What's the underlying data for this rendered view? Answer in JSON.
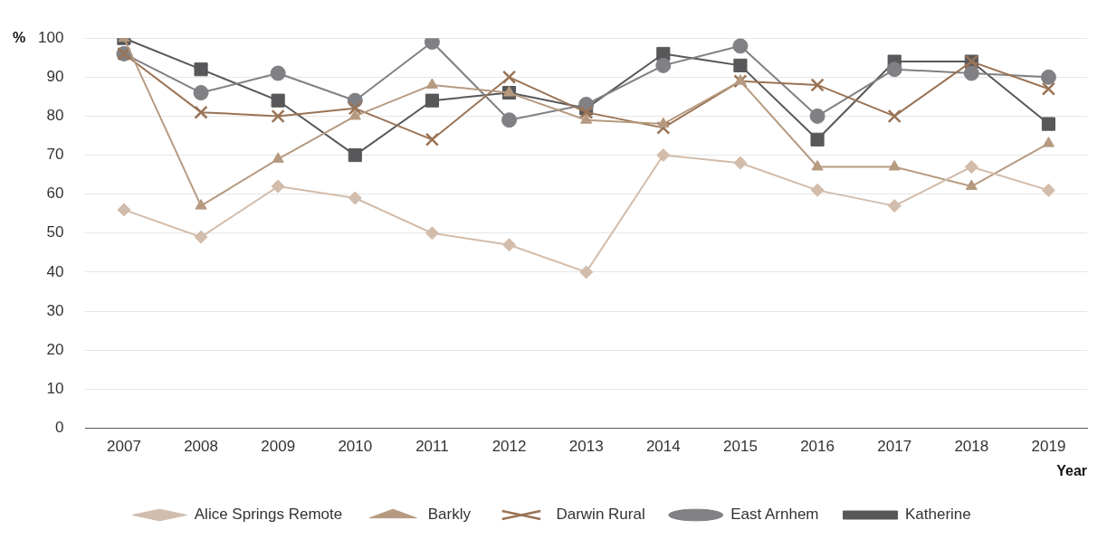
{
  "chart_data": {
    "type": "line",
    "xlabel": "Year",
    "ylabel": "%",
    "categories": [
      "2007",
      "2008",
      "2009",
      "2010",
      "2011",
      "2012",
      "2013",
      "2014",
      "2015",
      "2016",
      "2017",
      "2018",
      "2019"
    ],
    "series": [
      {
        "name": "Alice Springs Remote",
        "color": "#d2bcab",
        "marker": "diamond",
        "values": [
          56,
          49,
          62,
          59,
          50,
          47,
          40,
          70,
          68,
          61,
          57,
          67,
          61
        ]
      },
      {
        "name": "Barkly",
        "color": "#b69a80",
        "marker": "triangle",
        "values": [
          100,
          57,
          69,
          80,
          88,
          86,
          79,
          78,
          89,
          67,
          67,
          62,
          73
        ]
      },
      {
        "name": "Darwin Rural",
        "color": "#9a7355",
        "marker": "cross",
        "values": [
          96,
          81,
          80,
          82,
          74,
          90,
          81,
          77,
          89,
          88,
          80,
          94,
          87
        ]
      },
      {
        "name": "East Arnhem",
        "color": "#808085",
        "marker": "circle",
        "values": [
          96,
          86,
          91,
          84,
          99,
          79,
          83,
          93,
          98,
          80,
          92,
          91,
          90
        ]
      },
      {
        "name": "Katherine",
        "color": "#58585a",
        "marker": "square",
        "values": [
          100,
          92,
          84,
          70,
          84,
          86,
          82,
          96,
          93,
          74,
          94,
          94,
          78
        ]
      }
    ],
    "ylim": [
      0,
      100
    ],
    "yticks": [
      0,
      10,
      20,
      30,
      40,
      50,
      60,
      70,
      80,
      90,
      100
    ],
    "grid": "y",
    "legend": "bottom",
    "line_style": "solid"
  }
}
